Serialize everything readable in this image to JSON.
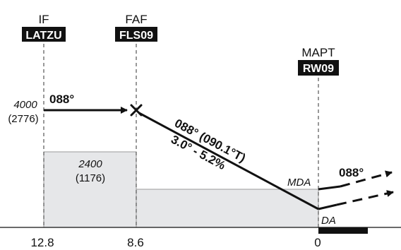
{
  "fixes": {
    "if": {
      "role": "IF",
      "name": "LATZU"
    },
    "faf": {
      "role": "FAF",
      "name": "FLS09"
    },
    "mapt": {
      "role": "MAPT",
      "name": "RW09"
    }
  },
  "altitudes": {
    "initial": {
      "value": "4000",
      "height": "(2776)"
    },
    "msa_block": {
      "value": "2400",
      "height": "(1176)"
    }
  },
  "courses": {
    "intermediate": "088°",
    "final": "088° (090.1°T)",
    "glidepath": "3.0° - 5.2%",
    "missed": "088°"
  },
  "minima": {
    "mda": "MDA",
    "da": "DA"
  },
  "distances": {
    "if": "12.8",
    "faf": "8.6",
    "threshold": "0"
  },
  "colors": {
    "line": "#111111",
    "shade": "#e6e7e9",
    "label_bg": "#111111"
  }
}
